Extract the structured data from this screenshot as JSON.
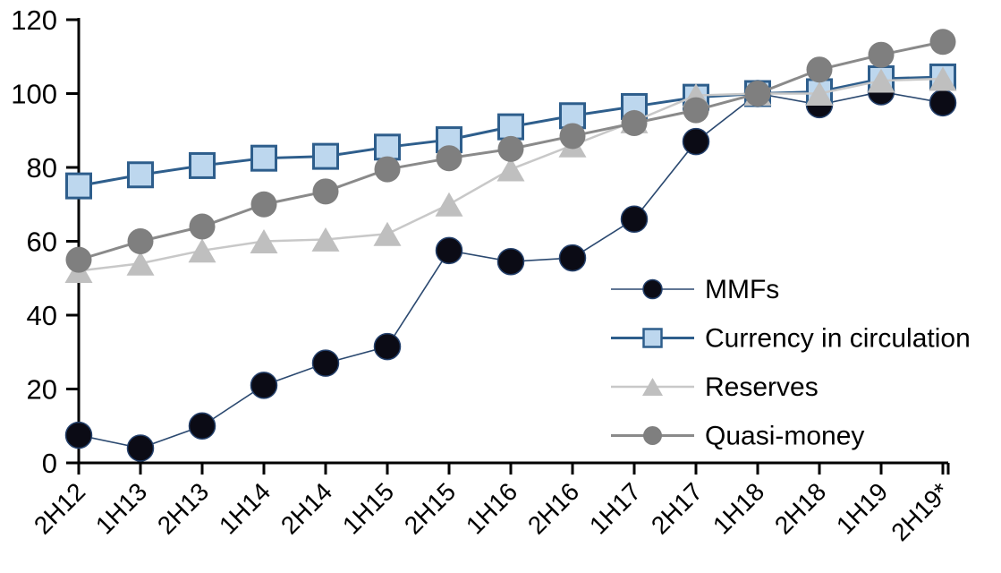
{
  "chart_data": {
    "type": "line",
    "title": "",
    "xlabel": "",
    "ylabel": "",
    "categories": [
      "2H12",
      "1H13",
      "2H13",
      "1H14",
      "2H14",
      "1H15",
      "2H15",
      "1H16",
      "2H16",
      "1H17",
      "2H17",
      "1H18",
      "2H18",
      "1H19",
      "2H19*"
    ],
    "series": [
      {
        "name": "MMFs",
        "marker": "circle",
        "values": [
          7.5,
          4,
          10,
          21,
          27,
          31.5,
          57.5,
          54.5,
          55.5,
          66,
          87,
          100,
          97,
          100.5,
          97.5
        ],
        "marker_fill": "#0b0b15",
        "marker_stroke": "#24406b",
        "marker_stroke_width": 1.5,
        "line_color": "#2b4970",
        "line_width": 1.6,
        "marker_size": 29
      },
      {
        "name": "Currency in circulation",
        "marker": "square",
        "values": [
          75,
          78,
          80.5,
          82.5,
          83,
          85.5,
          87.5,
          91,
          94,
          96.5,
          99,
          100,
          100.5,
          104,
          104.5
        ],
        "marker_fill": "#bdd7ee",
        "marker_stroke": "#2e5e8c",
        "marker_stroke_width": 3,
        "line_color": "#2e5e8c",
        "line_width": 3,
        "marker_size": 27
      },
      {
        "name": "Reserves",
        "marker": "triangle",
        "values": [
          52,
          54,
          57.5,
          60,
          60.5,
          62,
          70,
          79.5,
          86,
          92.5,
          99.5,
          100,
          100,
          103.5,
          104
        ],
        "marker_fill": "#bfbfbf",
        "marker_stroke": "none",
        "marker_stroke_width": 0,
        "line_color": "#c8c8c8",
        "line_width": 2.5,
        "marker_size": 31
      },
      {
        "name": "Quasi-money",
        "marker": "circle",
        "values": [
          55,
          60,
          64,
          70,
          73.5,
          79.5,
          82.5,
          85,
          88.5,
          92,
          95.5,
          100,
          106.5,
          110.5,
          114
        ],
        "marker_fill": "#7f7f7f",
        "marker_stroke": "none",
        "marker_stroke_width": 0,
        "line_color": "#8a8a8a",
        "line_width": 3,
        "marker_size": 29
      }
    ],
    "ylim": [
      0,
      120
    ],
    "ytick_step": 20,
    "ytick_labels": [
      "0",
      "20",
      "40",
      "60",
      "80",
      "100",
      "120"
    ],
    "x_label_rotation": -45,
    "grid": "off",
    "legend_position": "inside-right",
    "legend_labels": [
      "MMFs",
      "Currency in circulation",
      "Reserves",
      "Quasi-money"
    ],
    "axis_color": "#000000",
    "text_color": "#000000",
    "background_color": "#ffffff"
  }
}
